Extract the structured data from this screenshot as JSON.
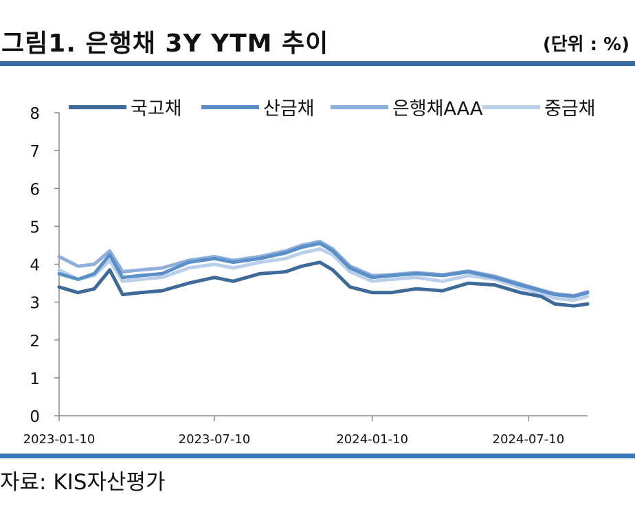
{
  "figure": {
    "title": "그림1. 은행채 3Y YTM 추이",
    "unit": "(단위 : %)",
    "source": "자료: KIS자산평가"
  },
  "colors": {
    "rule_top": "#3b6aa0",
    "rule_bottom": "#3b78b8",
    "series": [
      "#3d6a99",
      "#5b8fc8",
      "#8eaedc",
      "#b9cfea"
    ]
  },
  "chart_data": {
    "type": "line",
    "title": "",
    "xlabel": "",
    "ylabel": "",
    "ylim": [
      0,
      8
    ],
    "yticks": [
      0,
      1,
      2,
      3,
      4,
      5,
      6,
      7,
      8
    ],
    "xlim": [
      "2023-01-10",
      "2024-09-17"
    ],
    "xticks": [
      "2023-01-10",
      "2023-07-10",
      "2024-01-10",
      "2024-07-10"
    ],
    "grid": false,
    "legend": "top",
    "x": [
      "2023-01-10",
      "2023-02-01",
      "2023-02-20",
      "2023-03-10",
      "2023-03-25",
      "2023-04-15",
      "2023-05-10",
      "2023-06-10",
      "2023-07-10",
      "2023-08-01",
      "2023-09-01",
      "2023-10-01",
      "2023-10-20",
      "2023-11-10",
      "2023-11-25",
      "2023-12-15",
      "2024-01-10",
      "2024-02-01",
      "2024-03-01",
      "2024-04-01",
      "2024-05-01",
      "2024-06-01",
      "2024-07-01",
      "2024-07-25",
      "2024-08-10",
      "2024-09-01",
      "2024-09-17"
    ],
    "series": [
      {
        "name": "국고채",
        "values": [
          3.4,
          3.25,
          3.35,
          3.85,
          3.2,
          3.25,
          3.3,
          3.5,
          3.65,
          3.55,
          3.75,
          3.8,
          3.95,
          4.05,
          3.85,
          3.4,
          3.25,
          3.25,
          3.35,
          3.3,
          3.5,
          3.45,
          3.25,
          3.15,
          2.95,
          2.9,
          2.95
        ]
      },
      {
        "name": "산금채",
        "values": [
          3.75,
          3.6,
          3.75,
          4.25,
          3.65,
          3.7,
          3.75,
          4.05,
          4.15,
          4.05,
          4.15,
          4.3,
          4.45,
          4.55,
          4.35,
          3.9,
          3.65,
          3.7,
          3.75,
          3.7,
          3.8,
          3.65,
          3.45,
          3.3,
          3.2,
          3.15,
          3.25
        ]
      },
      {
        "name": "은행채AAA",
        "values": [
          4.2,
          3.95,
          4.0,
          4.35,
          3.8,
          3.85,
          3.9,
          4.1,
          4.2,
          4.1,
          4.2,
          4.35,
          4.5,
          4.6,
          4.4,
          3.95,
          3.7,
          3.72,
          3.78,
          3.72,
          3.82,
          3.68,
          3.48,
          3.32,
          3.22,
          3.17,
          3.27
        ]
      },
      {
        "name": "중금채",
        "values": [
          3.85,
          3.6,
          3.7,
          4.1,
          3.55,
          3.6,
          3.65,
          3.9,
          4.0,
          3.9,
          4.05,
          4.15,
          4.3,
          4.4,
          4.25,
          3.8,
          3.55,
          3.6,
          3.65,
          3.55,
          3.7,
          3.6,
          3.38,
          3.22,
          3.1,
          3.05,
          3.15
        ]
      }
    ]
  }
}
